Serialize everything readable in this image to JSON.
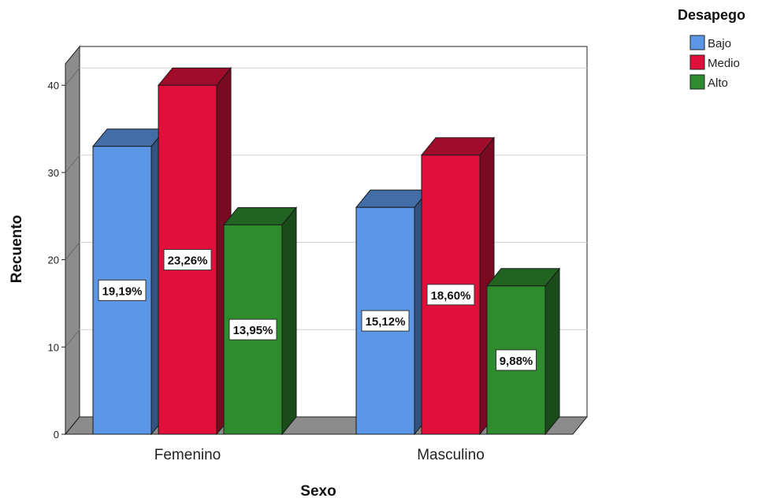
{
  "chart_data": {
    "type": "bar",
    "title": "",
    "xlabel": "Sexo",
    "ylabel": "Recuento",
    "categories": [
      "Femenino",
      "Masculino"
    ],
    "legend_title": "Desapego",
    "legend_position": "top-right",
    "ylim": [
      0,
      42
    ],
    "yticks": [
      0,
      10,
      20,
      30,
      40
    ],
    "grid": true,
    "three_d": true,
    "series": [
      {
        "name": "Bajo",
        "color": "#5b97e6",
        "values": [
          33,
          26
        ],
        "labels": [
          "19,19%",
          "15,12%"
        ]
      },
      {
        "name": "Medio",
        "color": "#e0103b",
        "values": [
          40,
          32
        ],
        "labels": [
          "23,26%",
          "18,60%"
        ]
      },
      {
        "name": "Alto",
        "color": "#2e8b2e",
        "values": [
          24,
          17
        ],
        "labels": [
          "13,95%",
          "9,88%"
        ]
      }
    ]
  }
}
